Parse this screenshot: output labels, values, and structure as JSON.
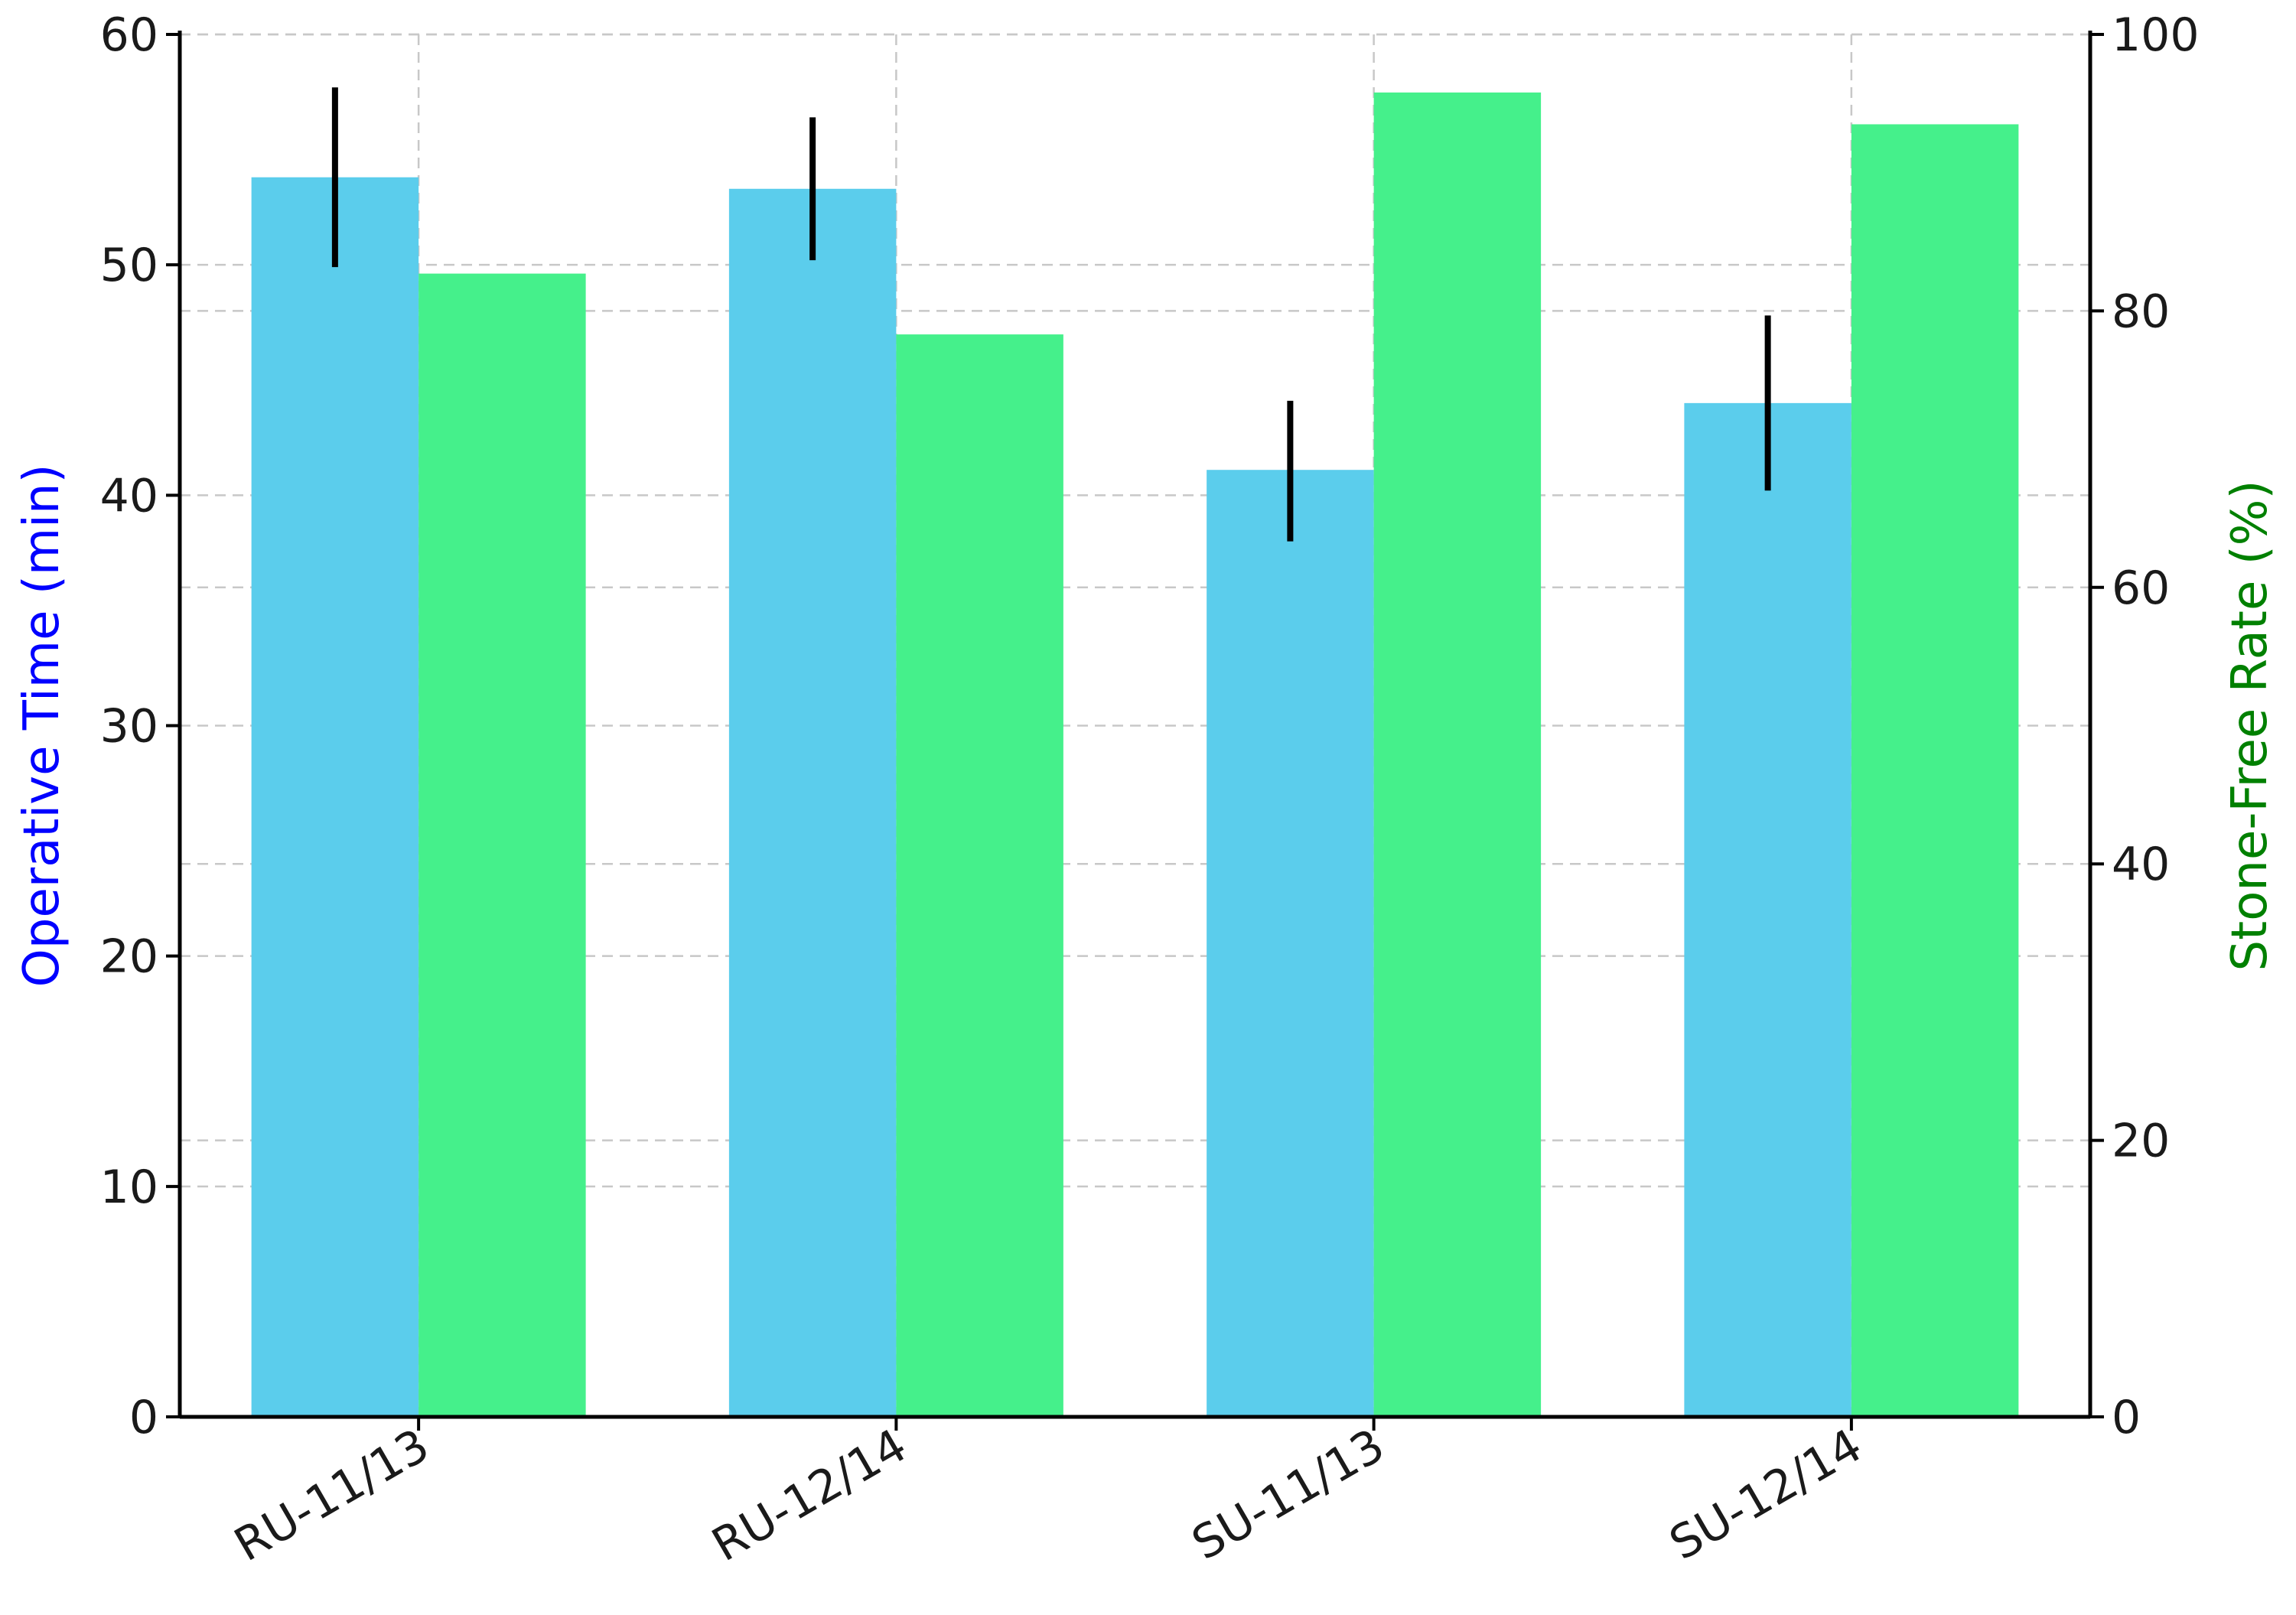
{
  "chart_data": {
    "type": "bar",
    "categories": [
      "RU-11/13",
      "RU-12/14",
      "SU-11/13",
      "SU-12/14"
    ],
    "series": [
      {
        "axis": "left",
        "color": "#5bcdec",
        "values": [
          53.8,
          53.3,
          41.1,
          44.0
        ],
        "error_low": [
          49.9,
          50.2,
          38.0,
          40.2
        ],
        "error_high": [
          57.7,
          56.4,
          44.1,
          47.8
        ]
      },
      {
        "axis": "right",
        "color": "#45f08b",
        "values": [
          82.7,
          78.3,
          95.8,
          93.5
        ]
      }
    ],
    "ylabel_left": "Operative Time (min)",
    "ylabel_right": "Stone-Free Rate (%)",
    "ylabel_left_color": "#0000ff",
    "ylabel_right_color": "#008000",
    "ylim_left": [
      0,
      60
    ],
    "ylim_right": [
      0,
      100
    ],
    "yticks_left": [
      "0",
      "10",
      "20",
      "30",
      "40",
      "50",
      "60"
    ],
    "yticks_right": [
      "0",
      "20",
      "40",
      "60",
      "80",
      "100"
    ],
    "grid": true,
    "error_bar_color": "#000000"
  }
}
